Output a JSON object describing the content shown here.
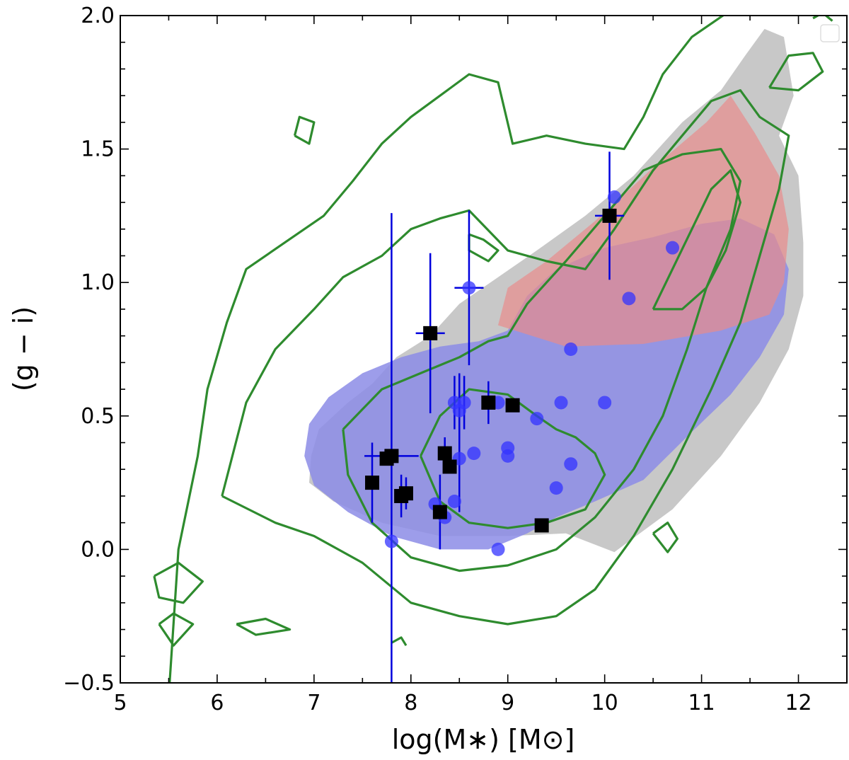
{
  "chart_data": {
    "type": "scatter",
    "title": "",
    "xlabel": "log(M∗) [M⊙]",
    "ylabel": "(g − i)",
    "xlim": [
      5,
      12.5
    ],
    "ylim": [
      -0.5,
      2.0
    ],
    "x_ticks": [
      5,
      6,
      7,
      8,
      9,
      10,
      11,
      12
    ],
    "x_tick_labels": [
      "5",
      "6",
      "7",
      "8",
      "9",
      "10",
      "11",
      "12"
    ],
    "y_ticks": [
      -0.5,
      0.0,
      0.5,
      1.0,
      1.5,
      2.0
    ],
    "y_tick_labels": [
      "−0.5",
      "0.0",
      "0.5",
      "1.0",
      "1.5",
      "2.0"
    ],
    "grid": false,
    "colors": {
      "grey_region": "#c8c8c8",
      "red_region": "#e88c8c",
      "blue_region": "#8c8ce6",
      "contours": "#2e8b2e",
      "blue_points": "#3333ff",
      "black_points": "#000000",
      "error_bars": "#0000dd"
    },
    "regions": [
      {
        "name": "grey-population",
        "color": "#c8c8c8",
        "opacity": 1.0,
        "polygon": [
          [
            6.95,
            0.25
          ],
          [
            6.97,
            0.35
          ],
          [
            7.05,
            0.45
          ],
          [
            7.35,
            0.55
          ],
          [
            7.6,
            0.62
          ],
          [
            7.85,
            0.72
          ],
          [
            8.2,
            0.8
          ],
          [
            8.5,
            0.92
          ],
          [
            8.9,
            1.02
          ],
          [
            9.3,
            1.12
          ],
          [
            9.8,
            1.25
          ],
          [
            10.3,
            1.4
          ],
          [
            10.8,
            1.6
          ],
          [
            11.2,
            1.72
          ],
          [
            11.45,
            1.85
          ],
          [
            11.65,
            1.95
          ],
          [
            11.85,
            1.92
          ],
          [
            11.95,
            1.7
          ],
          [
            11.8,
            1.55
          ],
          [
            12.0,
            1.4
          ],
          [
            12.05,
            1.15
          ],
          [
            12.05,
            0.95
          ],
          [
            11.9,
            0.75
          ],
          [
            11.6,
            0.55
          ],
          [
            11.2,
            0.35
          ],
          [
            10.7,
            0.15
          ],
          [
            10.1,
            -0.01
          ],
          [
            9.6,
            0.06
          ],
          [
            9.0,
            0.05
          ],
          [
            8.3,
            0.05
          ],
          [
            7.7,
            0.1
          ],
          [
            7.2,
            0.18
          ],
          [
            6.95,
            0.25
          ]
        ]
      },
      {
        "name": "blue-population",
        "color": "#8c8ce6",
        "opacity": 0.85,
        "polygon": [
          [
            6.9,
            0.35
          ],
          [
            6.95,
            0.47
          ],
          [
            7.15,
            0.57
          ],
          [
            7.5,
            0.66
          ],
          [
            7.9,
            0.72
          ],
          [
            8.3,
            0.76
          ],
          [
            8.7,
            0.78
          ],
          [
            9.0,
            0.82
          ],
          [
            9.2,
            0.95
          ],
          [
            9.5,
            1.05
          ],
          [
            10.0,
            1.13
          ],
          [
            10.5,
            1.17
          ],
          [
            11.0,
            1.22
          ],
          [
            11.4,
            1.24
          ],
          [
            11.75,
            1.18
          ],
          [
            11.9,
            1.05
          ],
          [
            11.85,
            0.88
          ],
          [
            11.6,
            0.72
          ],
          [
            11.3,
            0.58
          ],
          [
            10.9,
            0.44
          ],
          [
            10.4,
            0.26
          ],
          [
            9.9,
            0.18
          ],
          [
            9.5,
            0.12
          ],
          [
            9.2,
            0.06
          ],
          [
            8.8,
            0.0
          ],
          [
            8.3,
            0.0
          ],
          [
            7.8,
            0.05
          ],
          [
            7.35,
            0.14
          ],
          [
            7.0,
            0.24
          ],
          [
            6.9,
            0.35
          ]
        ]
      },
      {
        "name": "red-population",
        "color": "#e88c8c",
        "opacity": 0.7,
        "polygon": [
          [
            8.9,
            0.84
          ],
          [
            9.0,
            0.98
          ],
          [
            9.4,
            1.08
          ],
          [
            9.9,
            1.23
          ],
          [
            10.5,
            1.43
          ],
          [
            11.05,
            1.6
          ],
          [
            11.3,
            1.7
          ],
          [
            11.55,
            1.56
          ],
          [
            11.8,
            1.4
          ],
          [
            11.9,
            1.2
          ],
          [
            11.85,
            1.0
          ],
          [
            11.7,
            0.88
          ],
          [
            11.2,
            0.82
          ],
          [
            10.4,
            0.77
          ],
          [
            9.6,
            0.76
          ],
          [
            8.9,
            0.84
          ]
        ]
      }
    ],
    "contours": [
      [
        [
          5.5,
          -0.55
        ],
        [
          5.6,
          0.0
        ],
        [
          5.8,
          0.35
        ],
        [
          5.9,
          0.6
        ],
        [
          6.1,
          0.85
        ],
        [
          6.3,
          1.05
        ],
        [
          6.7,
          1.15
        ],
        [
          7.1,
          1.25
        ],
        [
          7.4,
          1.38
        ],
        [
          7.7,
          1.52
        ],
        [
          8.0,
          1.62
        ],
        [
          8.3,
          1.7
        ],
        [
          8.6,
          1.78
        ],
        [
          8.9,
          1.75
        ],
        [
          9.05,
          1.52
        ],
        [
          9.4,
          1.55
        ],
        [
          9.8,
          1.52
        ],
        [
          10.2,
          1.5
        ],
        [
          10.4,
          1.62
        ],
        [
          10.6,
          1.78
        ],
        [
          10.9,
          1.92
        ],
        [
          11.3,
          2.02
        ]
      ],
      [
        [
          6.05,
          0.2
        ],
        [
          6.3,
          0.55
        ],
        [
          6.6,
          0.75
        ],
        [
          7.0,
          0.9
        ],
        [
          7.3,
          1.02
        ],
        [
          7.7,
          1.1
        ],
        [
          8.0,
          1.2
        ],
        [
          8.3,
          1.24
        ],
        [
          8.6,
          1.27
        ],
        [
          9.0,
          1.12
        ],
        [
          9.4,
          1.08
        ],
        [
          9.8,
          1.05
        ],
        [
          10.1,
          1.2
        ],
        [
          10.5,
          1.42
        ],
        [
          10.8,
          1.55
        ],
        [
          11.1,
          1.68
        ],
        [
          11.4,
          1.72
        ],
        [
          11.6,
          1.62
        ],
        [
          11.9,
          1.55
        ],
        [
          11.8,
          1.35
        ],
        [
          11.6,
          1.1
        ],
        [
          11.4,
          0.85
        ],
        [
          11.1,
          0.6
        ],
        [
          10.7,
          0.3
        ],
        [
          10.3,
          0.05
        ],
        [
          9.9,
          -0.15
        ],
        [
          9.5,
          -0.25
        ],
        [
          9.0,
          -0.28
        ],
        [
          8.5,
          -0.25
        ],
        [
          8.0,
          -0.2
        ],
        [
          7.5,
          -0.05
        ],
        [
          7.0,
          0.05
        ],
        [
          6.6,
          0.1
        ],
        [
          6.05,
          0.2
        ]
      ],
      [
        [
          7.3,
          0.45
        ],
        [
          7.7,
          0.6
        ],
        [
          8.1,
          0.66
        ],
        [
          8.5,
          0.72
        ],
        [
          8.8,
          0.78
        ],
        [
          9.0,
          0.8
        ],
        [
          9.2,
          0.92
        ],
        [
          9.6,
          1.08
        ],
        [
          10.0,
          1.25
        ],
        [
          10.4,
          1.42
        ],
        [
          10.8,
          1.48
        ],
        [
          11.2,
          1.5
        ],
        [
          11.4,
          1.38
        ],
        [
          11.3,
          1.2
        ],
        [
          11.05,
          0.98
        ],
        [
          10.85,
          0.75
        ],
        [
          10.6,
          0.5
        ],
        [
          10.3,
          0.3
        ],
        [
          9.9,
          0.12
        ],
        [
          9.5,
          0.0
        ],
        [
          9.0,
          -0.06
        ],
        [
          8.5,
          -0.08
        ],
        [
          8.0,
          -0.03
        ],
        [
          7.6,
          0.1
        ],
        [
          7.35,
          0.28
        ],
        [
          7.3,
          0.45
        ]
      ],
      [
        [
          8.1,
          0.35
        ],
        [
          8.3,
          0.5
        ],
        [
          8.6,
          0.6
        ],
        [
          9.0,
          0.58
        ],
        [
          9.3,
          0.5
        ],
        [
          9.5,
          0.45
        ],
        [
          9.7,
          0.42
        ],
        [
          9.9,
          0.36
        ],
        [
          10.0,
          0.28
        ],
        [
          9.8,
          0.15
        ],
        [
          9.4,
          0.1
        ],
        [
          9.0,
          0.08
        ],
        [
          8.6,
          0.1
        ],
        [
          8.3,
          0.18
        ],
        [
          8.1,
          0.35
        ]
      ],
      [
        [
          10.5,
          0.9
        ],
        [
          10.7,
          1.05
        ],
        [
          10.9,
          1.2
        ],
        [
          11.1,
          1.35
        ],
        [
          11.3,
          1.42
        ],
        [
          11.4,
          1.3
        ],
        [
          11.25,
          1.12
        ],
        [
          11.05,
          0.98
        ],
        [
          10.8,
          0.9
        ],
        [
          10.5,
          0.9
        ]
      ],
      [
        [
          6.8,
          1.55
        ],
        [
          6.95,
          1.52
        ],
        [
          7.0,
          1.6
        ],
        [
          6.85,
          1.62
        ],
        [
          6.8,
          1.55
        ]
      ],
      [
        [
          11.7,
          1.73
        ],
        [
          12.0,
          1.72
        ],
        [
          12.25,
          1.79
        ],
        [
          12.15,
          1.86
        ],
        [
          11.9,
          1.85
        ],
        [
          11.7,
          1.73
        ]
      ],
      [
        [
          5.35,
          -0.1
        ],
        [
          5.6,
          -0.05
        ],
        [
          5.85,
          -0.12
        ],
        [
          5.65,
          -0.2
        ],
        [
          5.4,
          -0.18
        ],
        [
          5.35,
          -0.1
        ]
      ],
      [
        [
          5.4,
          -0.28
        ],
        [
          5.55,
          -0.24
        ],
        [
          5.75,
          -0.28
        ],
        [
          5.55,
          -0.36
        ],
        [
          5.4,
          -0.28
        ]
      ],
      [
        [
          10.5,
          0.06
        ],
        [
          10.65,
          0.1
        ],
        [
          10.75,
          0.04
        ],
        [
          10.65,
          -0.01
        ],
        [
          10.5,
          0.06
        ]
      ],
      [
        [
          12.15,
          1.99
        ],
        [
          12.25,
          2.01
        ],
        [
          12.35,
          1.98
        ]
      ],
      [
        [
          6.2,
          -0.28
        ],
        [
          6.5,
          -0.26
        ],
        [
          6.75,
          -0.3
        ],
        [
          6.4,
          -0.32
        ],
        [
          6.2,
          -0.28
        ]
      ],
      [
        [
          8.6,
          1.18
        ],
        [
          8.75,
          1.16
        ],
        [
          8.9,
          1.12
        ],
        [
          8.8,
          1.08
        ],
        [
          8.6,
          1.12
        ],
        [
          8.6,
          1.18
        ]
      ],
      [
        [
          7.8,
          -0.35
        ],
        [
          7.9,
          -0.33
        ],
        [
          7.95,
          -0.36
        ]
      ]
    ],
    "blue_points": [
      {
        "x": 10.1,
        "y": 1.32,
        "xerr": 0,
        "yerr": 0
      },
      {
        "x": 10.7,
        "y": 1.13,
        "xerr": 0,
        "yerr": 0
      },
      {
        "x": 10.25,
        "y": 0.94,
        "xerr": 0,
        "yerr": 0
      },
      {
        "x": 8.6,
        "y": 0.98,
        "xerr": 0.15,
        "yerr": 0.29
      },
      {
        "x": 9.65,
        "y": 0.75,
        "xerr": 0,
        "yerr": 0
      },
      {
        "x": 10.0,
        "y": 0.55,
        "xerr": 0,
        "yerr": 0
      },
      {
        "x": 9.55,
        "y": 0.55,
        "xerr": 0,
        "yerr": 0
      },
      {
        "x": 9.3,
        "y": 0.49,
        "xerr": 0,
        "yerr": 0
      },
      {
        "x": 9.65,
        "y": 0.32,
        "xerr": 0,
        "yerr": 0
      },
      {
        "x": 9.5,
        "y": 0.23,
        "xerr": 0,
        "yerr": 0
      },
      {
        "x": 9.0,
        "y": 0.38,
        "xerr": 0,
        "yerr": 0
      },
      {
        "x": 9.0,
        "y": 0.35,
        "xerr": 0,
        "yerr": 0
      },
      {
        "x": 8.9,
        "y": 0.55,
        "xerr": 0,
        "yerr": 0
      },
      {
        "x": 8.9,
        "y": 0.0,
        "xerr": 0,
        "yerr": 0
      },
      {
        "x": 8.55,
        "y": 0.55,
        "xerr": 0,
        "yerr": 0.1
      },
      {
        "x": 8.45,
        "y": 0.55,
        "xerr": 0,
        "yerr": 0.1
      },
      {
        "x": 8.5,
        "y": 0.52,
        "xerr": 0,
        "yerr": 0.14
      },
      {
        "x": 8.65,
        "y": 0.36,
        "xerr": 0,
        "yerr": 0
      },
      {
        "x": 8.5,
        "y": 0.34,
        "xerr": 0,
        "yerr": 0.2
      },
      {
        "x": 8.45,
        "y": 0.18,
        "xerr": 0,
        "yerr": 0
      },
      {
        "x": 8.35,
        "y": 0.12,
        "xerr": 0,
        "yerr": 0
      },
      {
        "x": 8.25,
        "y": 0.17,
        "xerr": 0,
        "yerr": 0
      },
      {
        "x": 7.8,
        "y": 0.03,
        "xerr": 0,
        "yerr": 0
      }
    ],
    "black_points": [
      {
        "x": 10.05,
        "y": 1.25,
        "xerr": 0.15,
        "yerr": 0.24
      },
      {
        "x": 8.2,
        "y": 0.81,
        "xerr": 0.15,
        "yerr": 0.3
      },
      {
        "x": 8.8,
        "y": 0.55,
        "xerr": 0,
        "yerr": 0.08
      },
      {
        "x": 9.05,
        "y": 0.54,
        "xerr": 0,
        "yerr": 0
      },
      {
        "x": 7.8,
        "y": 0.35,
        "xerr": 0.28,
        "yerr": 0.91
      },
      {
        "x": 7.75,
        "y": 0.34,
        "xerr": 0,
        "yerr": 0
      },
      {
        "x": 7.6,
        "y": 0.25,
        "xerr": 0,
        "yerr": 0.15
      },
      {
        "x": 7.95,
        "y": 0.21,
        "xerr": 0,
        "yerr": 0.06
      },
      {
        "x": 7.9,
        "y": 0.2,
        "xerr": 0,
        "yerr": 0.08
      },
      {
        "x": 8.35,
        "y": 0.36,
        "xerr": 0,
        "yerr": 0.06
      },
      {
        "x": 8.4,
        "y": 0.31,
        "xerr": 0,
        "yerr": 0
      },
      {
        "x": 8.3,
        "y": 0.14,
        "xerr": 0,
        "yerr": 0.14
      },
      {
        "x": 9.35,
        "y": 0.09,
        "xerr": 0,
        "yerr": 0
      }
    ],
    "legend": "top-right"
  }
}
